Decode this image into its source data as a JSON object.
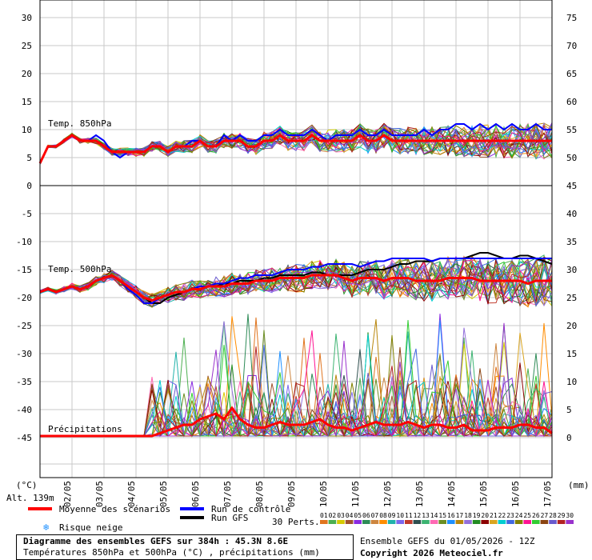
{
  "chart_data": {
    "type": "line",
    "title": "Diagramme des ensembles GEFS sur 384h : 45.3N 8.6E",
    "subtitle": "Températures 850hPa et 500hPa (°C) , précipitations (mm)",
    "x_tick_labels": [
      "02/05",
      "03/05",
      "04/05",
      "05/05",
      "06/05",
      "07/05",
      "08/05",
      "09/05",
      "10/05",
      "11/05",
      "12/05",
      "13/05",
      "14/05",
      "15/05",
      "16/05",
      "17/05"
    ],
    "left_axis": {
      "unit": "(°C)",
      "ticks": [
        30,
        25,
        20,
        15,
        10,
        5,
        0,
        -5,
        -10,
        -15,
        -20,
        -25,
        -30,
        -35,
        -40,
        -45
      ]
    },
    "right_axis": {
      "unit": "(mm)",
      "ticks": [
        75,
        70,
        65,
        60,
        55,
        50,
        45,
        40,
        35,
        30,
        25,
        20,
        15,
        10,
        5,
        0
      ]
    },
    "alt_label": "Alt. 139m",
    "panel_labels": {
      "t850": "Temp. 850hPa",
      "t500": "Temp. 500hPa",
      "precip": "Précipitations"
    },
    "hours_per_step": 6,
    "total_hours": 384,
    "t850_mean": [
      4,
      7,
      7,
      8,
      9,
      8,
      8,
      8,
      7,
      6,
      6,
      6,
      6,
      6,
      7,
      7,
      6,
      7,
      7,
      7,
      8,
      7,
      7,
      8,
      8,
      8,
      7,
      7,
      8,
      8,
      9,
      8,
      8,
      8,
      9,
      8,
      8,
      8,
      8,
      8,
      9,
      8,
      8,
      9,
      8,
      8,
      8,
      8,
      8,
      8,
      8,
      8,
      8,
      8,
      8,
      8,
      8,
      8,
      8,
      8,
      8,
      8,
      8,
      8,
      8
    ],
    "t850_control": [
      4,
      7,
      7,
      8,
      9,
      8,
      8,
      9,
      8,
      6,
      5,
      6,
      6,
      6,
      7,
      7,
      6,
      7,
      7,
      8,
      8,
      7,
      7,
      9,
      8,
      9,
      8,
      8,
      9,
      9,
      10,
      9,
      9,
      9,
      10,
      9,
      8,
      9,
      9,
      9,
      10,
      9,
      9,
      10,
      9,
      9,
      9,
      9,
      10,
      9,
      10,
      10,
      11,
      11,
      10,
      11,
      10,
      11,
      10,
      11,
      10,
      10,
      11,
      10,
      10
    ],
    "t500_mean": [
      -19,
      -18.5,
      -19,
      -18.5,
      -18,
      -18.5,
      -18,
      -17,
      -16.5,
      -16,
      -17,
      -18,
      -19,
      -20,
      -20.5,
      -20,
      -19.5,
      -19,
      -19,
      -18.5,
      -18.5,
      -18,
      -18,
      -18,
      -17.5,
      -17.5,
      -17.5,
      -17,
      -17,
      -17,
      -16.5,
      -16.5,
      -16.5,
      -16.5,
      -16,
      -16,
      -16,
      -16,
      -16.5,
      -17,
      -16.5,
      -16.5,
      -16.5,
      -17,
      -16.5,
      -16.5,
      -16.5,
      -17,
      -17,
      -17,
      -17,
      -16.5,
      -16.5,
      -16.5,
      -16.5,
      -17,
      -17,
      -17,
      -17,
      -17,
      -17,
      -17.5,
      -17,
      -17,
      -17
    ],
    "t500_control": [
      -19,
      -18.5,
      -19,
      -18.5,
      -18,
      -18.5,
      -18,
      -17,
      -16.5,
      -16,
      -17,
      -18.5,
      -19.5,
      -21,
      -21,
      -20,
      -19.5,
      -19,
      -19,
      -18.5,
      -18,
      -18,
      -17.5,
      -17.5,
      -17,
      -16.5,
      -16.5,
      -16,
      -16,
      -16,
      -15.5,
      -15,
      -15,
      -15,
      -14.5,
      -14.5,
      -14,
      -14,
      -14,
      -14,
      -14.5,
      -14,
      -13.5,
      -13.5,
      -13,
      -13,
      -13,
      -13,
      -13,
      -13.5,
      -13,
      -13,
      -13,
      -13,
      -13,
      -13,
      -13,
      -13,
      -13,
      -13,
      -13,
      -13,
      -13,
      -13,
      -13
    ],
    "t500_gfs": [
      -19,
      -18.5,
      -19,
      -18.5,
      -18,
      -18.5,
      -18,
      -17,
      -16.5,
      -16,
      -17,
      -18,
      -19,
      -20,
      -21,
      -21,
      -20,
      -19.5,
      -19,
      -18.5,
      -18,
      -18,
      -18,
      -17.5,
      -17.5,
      -17,
      -17,
      -17,
      -16.5,
      -16.5,
      -16,
      -16,
      -16,
      -16,
      -15.5,
      -15.5,
      -16,
      -16,
      -16,
      -16,
      -15.5,
      -15,
      -15,
      -15,
      -14.5,
      -14,
      -14,
      -13.5,
      -13.5,
      -13.5,
      -13,
      -13,
      -13,
      -13,
      -12.5,
      -12,
      -12,
      -12.5,
      -13,
      -13,
      -12.5,
      -12.5,
      -13,
      -13.5,
      -14
    ],
    "precip_mean": [
      0,
      0,
      0,
      0,
      0,
      0,
      0,
      0,
      0,
      0,
      0,
      0,
      0,
      0,
      0,
      0.5,
      1,
      1.5,
      2,
      2,
      3,
      3.5,
      4,
      3,
      5,
      3,
      2,
      1.5,
      1.5,
      2,
      2.5,
      2,
      2,
      2,
      2.5,
      3,
      2,
      1.5,
      1.5,
      1,
      1.5,
      2,
      2.5,
      2,
      2,
      2,
      2.5,
      2,
      1.5,
      2,
      2,
      1.5,
      1.5,
      2,
      1,
      1,
      1,
      1.5,
      1.5,
      1.5,
      2,
      2,
      1.5,
      1.5,
      0.5
    ],
    "legend": {
      "mean": "Moyenne des scénarios",
      "control": "Run de contrôle",
      "gfs": "Run GFS",
      "snow": "Risque neige",
      "perts": "30 Perts.",
      "colors": {
        "mean": "#ff0000",
        "control": "#0000ff",
        "gfs": "#000000"
      }
    },
    "member_labels": [
      "01",
      "02",
      "03",
      "04",
      "05",
      "06",
      "07",
      "08",
      "09",
      "10",
      "11",
      "12",
      "13",
      "14",
      "15",
      "16",
      "17",
      "18",
      "19",
      "20",
      "21",
      "22",
      "23",
      "24",
      "25",
      "26",
      "27",
      "28",
      "29",
      "30"
    ],
    "member_colors": [
      "#e0741e",
      "#4caf50",
      "#d6ca00",
      "#a0522d",
      "#8a2be2",
      "#2e8b57",
      "#cd853f",
      "#ff8c00",
      "#20b2aa",
      "#7b68ee",
      "#c0392b",
      "#2f4f4f",
      "#3cb371",
      "#ff69b4",
      "#6b8e23",
      "#1e90ff",
      "#b8860b",
      "#9370db",
      "#228b22",
      "#8b0000",
      "#daa520",
      "#00ced1",
      "#4169e1",
      "#808000",
      "#ff1493",
      "#32cd32",
      "#8b4513",
      "#6a5acd",
      "#b22222",
      "#9932cc"
    ],
    "footer": {
      "run": "Ensemble GEFS du 01/05/2026 - 12Z",
      "copyright": "Copyright 2026 Meteociel.fr"
    }
  }
}
